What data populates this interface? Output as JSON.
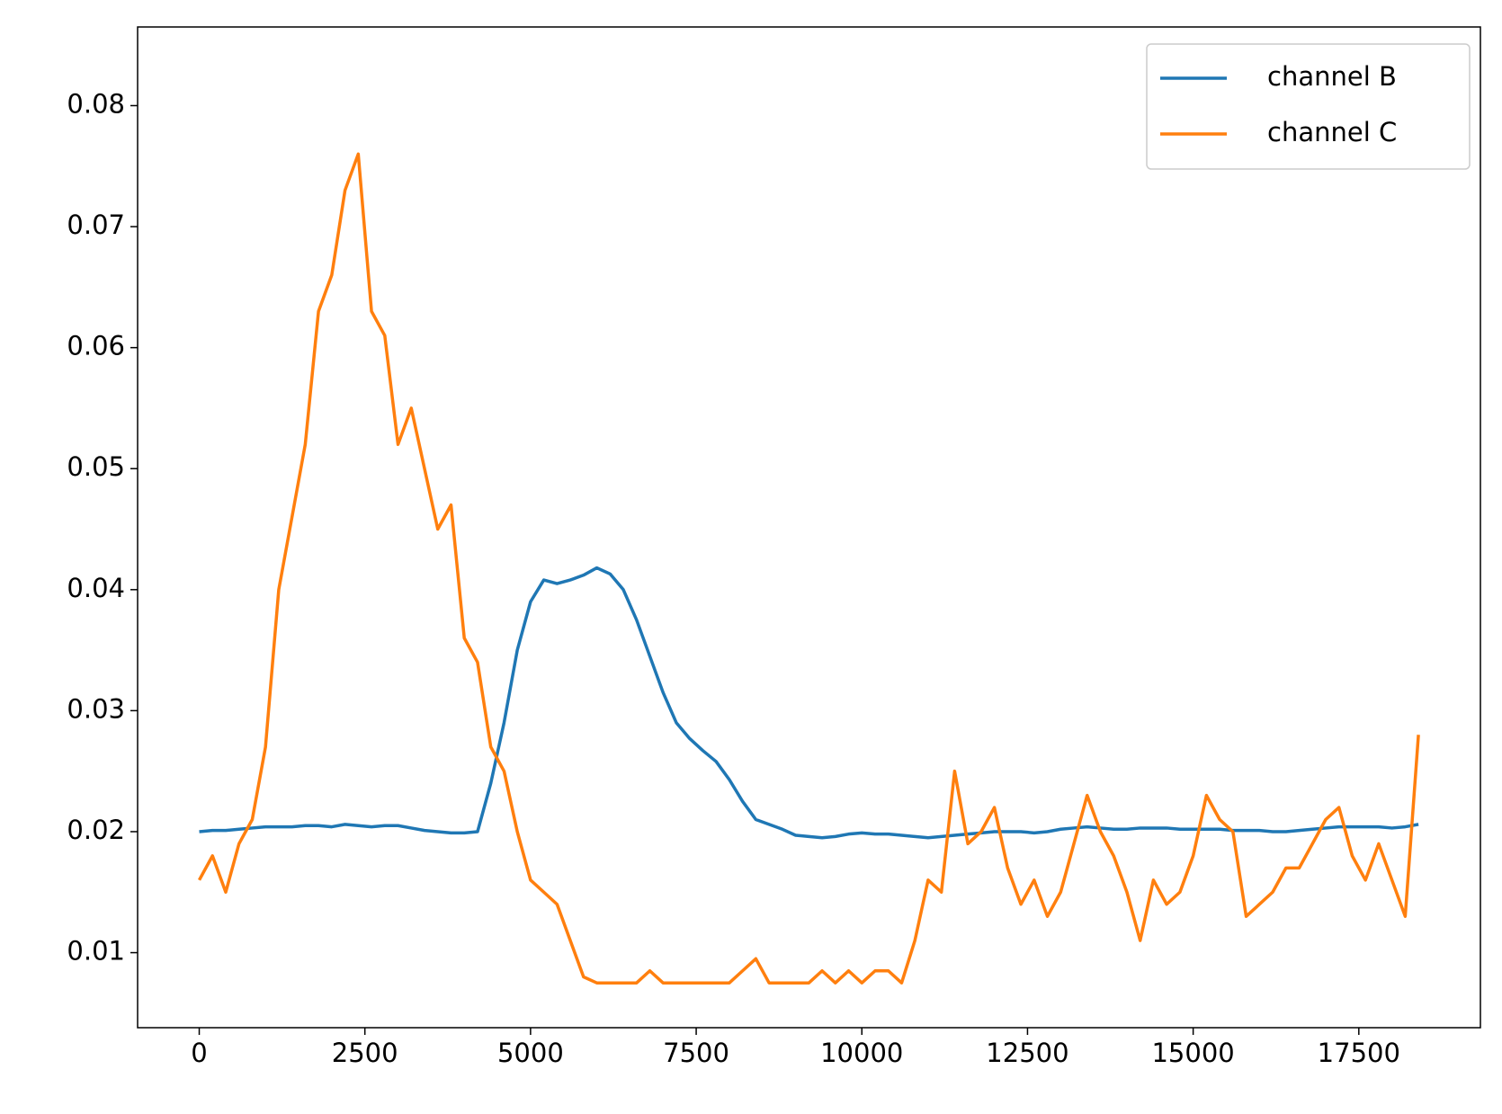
{
  "chart_data": {
    "type": "line",
    "x": [
      0,
      200,
      400,
      600,
      800,
      1000,
      1200,
      1400,
      1600,
      1800,
      2000,
      2200,
      2400,
      2600,
      2800,
      3000,
      3200,
      3400,
      3600,
      3800,
      4000,
      4200,
      4400,
      4600,
      4800,
      5000,
      5200,
      5400,
      5600,
      5800,
      6000,
      6200,
      6400,
      6600,
      6800,
      7000,
      7200,
      7400,
      7600,
      7800,
      8000,
      8200,
      8400,
      8600,
      8800,
      9000,
      9200,
      9400,
      9600,
      9800,
      10000,
      10200,
      10400,
      10600,
      10800,
      11000,
      11200,
      11400,
      11600,
      11800,
      12000,
      12200,
      12400,
      12600,
      12800,
      13000,
      13200,
      13400,
      13600,
      13800,
      14000,
      14200,
      14400,
      14600,
      14800,
      15000,
      15200,
      15400,
      15600,
      15800,
      16000,
      16200,
      16400,
      16600,
      16800,
      17000,
      17200,
      17400,
      17600,
      17800,
      18000,
      18200,
      18400
    ],
    "series": [
      {
        "name": "channel B",
        "color": "#1f77b4",
        "values": [
          0.02,
          0.0201,
          0.0201,
          0.0202,
          0.0203,
          0.0204,
          0.0204,
          0.0204,
          0.0205,
          0.0205,
          0.0204,
          0.0206,
          0.0205,
          0.0204,
          0.0205,
          0.0205,
          0.0203,
          0.0201,
          0.02,
          0.0199,
          0.0199,
          0.02,
          0.024,
          0.029,
          0.035,
          0.039,
          0.0408,
          0.0405,
          0.0408,
          0.0412,
          0.0418,
          0.0413,
          0.04,
          0.0375,
          0.0345,
          0.0315,
          0.029,
          0.0277,
          0.0267,
          0.0258,
          0.0243,
          0.0225,
          0.021,
          0.0206,
          0.0202,
          0.0197,
          0.0196,
          0.0195,
          0.0196,
          0.0198,
          0.0199,
          0.0198,
          0.0198,
          0.0197,
          0.0196,
          0.0195,
          0.0196,
          0.0197,
          0.0198,
          0.0199,
          0.02,
          0.02,
          0.02,
          0.0199,
          0.02,
          0.0202,
          0.0203,
          0.0204,
          0.0203,
          0.0202,
          0.0202,
          0.0203,
          0.0203,
          0.0203,
          0.0202,
          0.0202,
          0.0202,
          0.0202,
          0.0201,
          0.0201,
          0.0201,
          0.02,
          0.02,
          0.0201,
          0.0202,
          0.0203,
          0.0204,
          0.0204,
          0.0204,
          0.0204,
          0.0203,
          0.0204,
          0.0206
        ]
      },
      {
        "name": "channel C",
        "color": "#ff7f0e",
        "values": [
          0.016,
          0.018,
          0.015,
          0.019,
          0.021,
          0.027,
          0.04,
          0.046,
          0.052,
          0.063,
          0.066,
          0.073,
          0.076,
          0.063,
          0.061,
          0.052,
          0.055,
          0.05,
          0.045,
          0.047,
          0.036,
          0.034,
          0.027,
          0.025,
          0.02,
          0.016,
          0.015,
          0.014,
          0.011,
          0.008,
          0.0075,
          0.0075,
          0.0075,
          0.0075,
          0.0085,
          0.0075,
          0.0075,
          0.0075,
          0.0075,
          0.0075,
          0.0075,
          0.0085,
          0.0095,
          0.0075,
          0.0075,
          0.0075,
          0.0075,
          0.0085,
          0.0075,
          0.0085,
          0.0075,
          0.0085,
          0.0085,
          0.0075,
          0.011,
          0.016,
          0.015,
          0.025,
          0.019,
          0.02,
          0.022,
          0.017,
          0.014,
          0.016,
          0.013,
          0.015,
          0.019,
          0.023,
          0.02,
          0.018,
          0.015,
          0.011,
          0.016,
          0.014,
          0.015,
          0.018,
          0.023,
          0.021,
          0.02,
          0.013,
          0.014,
          0.015,
          0.017,
          0.017,
          0.019,
          0.021,
          0.022,
          0.018,
          0.016,
          0.019,
          0.016,
          0.013,
          0.028
        ]
      }
    ],
    "xlim": [
      -930,
      19335
    ],
    "xticks": [
      0,
      2500,
      5000,
      7500,
      10000,
      12500,
      15000,
      17500
    ],
    "ylim": [
      0.0038,
      0.0865
    ],
    "yticks": [
      0.01,
      0.02,
      0.03,
      0.04,
      0.05,
      0.06,
      0.07,
      0.08
    ],
    "grid": false,
    "legend": "upper right"
  }
}
